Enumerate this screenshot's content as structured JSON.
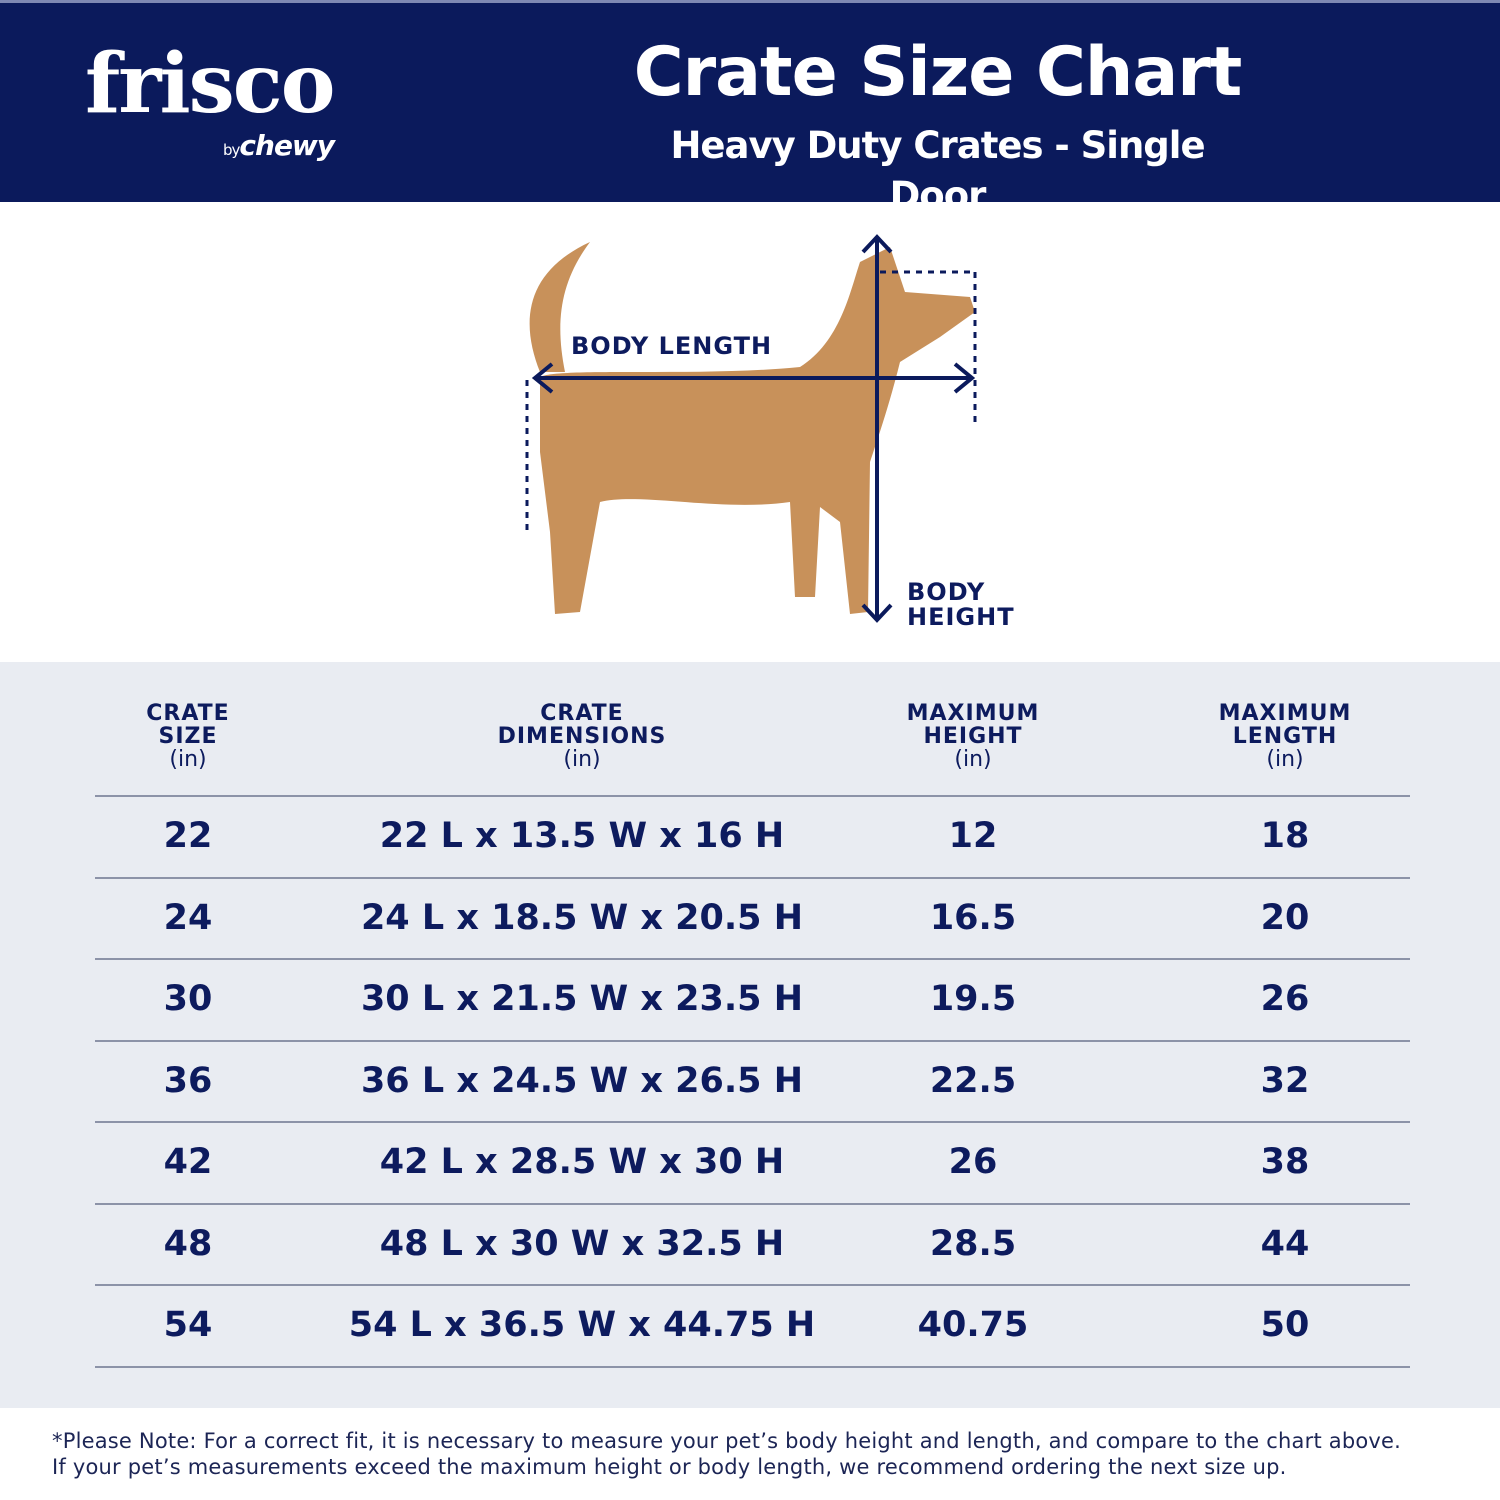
{
  "header": {
    "logo_brand": "frisco",
    "logo_by": "by",
    "logo_sub": "chewy",
    "title": "Crate Size Chart",
    "subtitle": "Heavy Duty Crates - Single Door"
  },
  "diagram": {
    "body_length_label": "BODY LENGTH",
    "body_height_label_1": "BODY",
    "body_height_label_2": "HEIGHT"
  },
  "colors": {
    "navy": "#0b1a5c",
    "table_bg": "#e9ecf2",
    "dog": "#c8915a"
  },
  "table": {
    "headers": [
      {
        "l1": "CRATE",
        "l2": "SIZE",
        "unit": "(in)"
      },
      {
        "l1": "CRATE",
        "l2": "DIMENSIONS",
        "unit": "(in)"
      },
      {
        "l1": "MAXIMUM",
        "l2": "HEIGHT",
        "unit": "(in)"
      },
      {
        "l1": "MAXIMUM",
        "l2": "LENGTH",
        "unit": "(in)"
      }
    ],
    "rows": [
      [
        "22",
        "22 L x 13.5 W x 16 H",
        "12",
        "18"
      ],
      [
        "24",
        "24 L x 18.5 W x 20.5 H",
        "16.5",
        "20"
      ],
      [
        "30",
        "30 L x 21.5 W x 23.5 H",
        "19.5",
        "26"
      ],
      [
        "36",
        "36 L x 24.5 W x 26.5 H",
        "22.5",
        "32"
      ],
      [
        "42",
        "42 L x 28.5 W x 30 H",
        "26",
        "38"
      ],
      [
        "48",
        "48 L x 30 W x 32.5 H",
        "28.5",
        "44"
      ],
      [
        "54",
        "54 L x 36.5 W x 44.75 H",
        "40.75",
        "50"
      ]
    ]
  },
  "note": {
    "line1": "*Please Note: For a correct fit, it is necessary to measure your pet’s body height and length, and compare to the chart above.",
    "line2": "If your pet’s measurements exceed the maximum height or body length, we recommend ordering the next size up."
  }
}
